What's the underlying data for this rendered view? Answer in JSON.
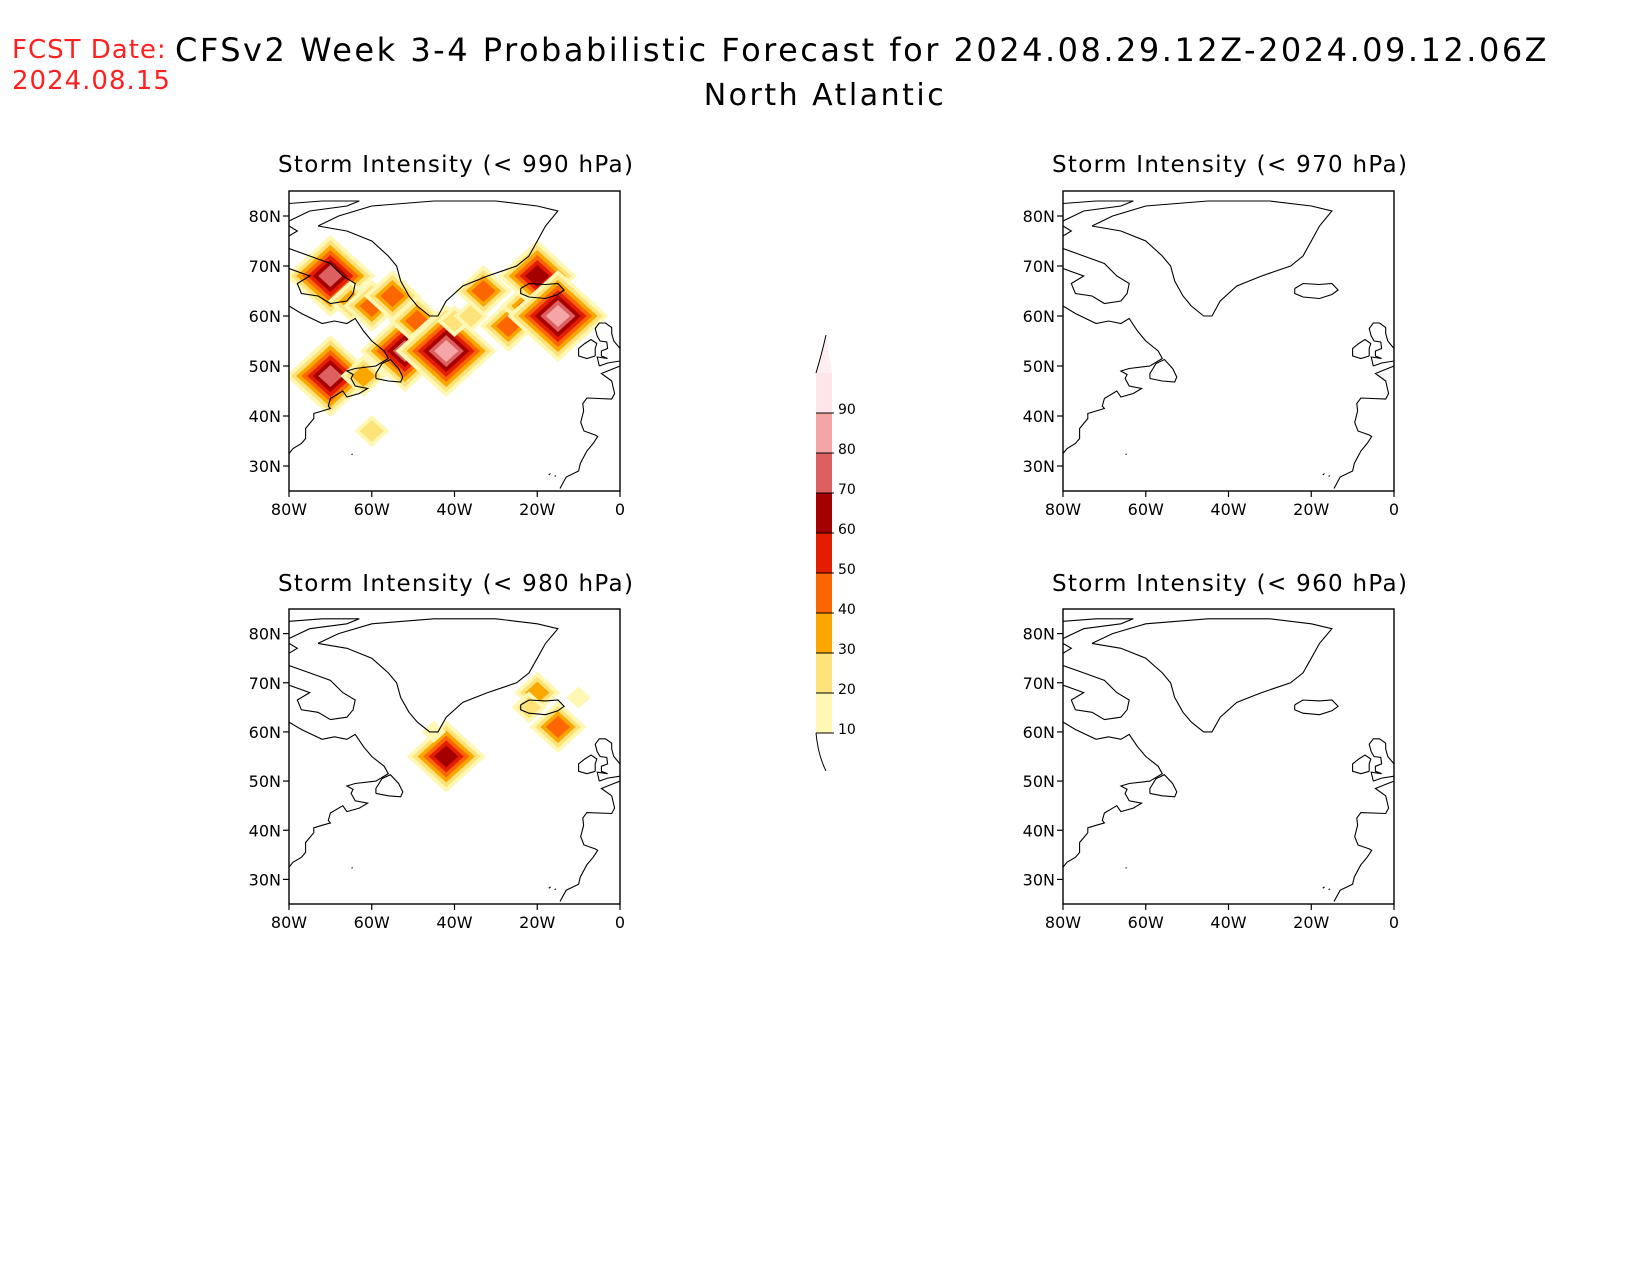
{
  "header": {
    "fcst_label": "FCST Date:",
    "fcst_date": "2024.08.15",
    "title": "CFSv2  Week  3-4  Probabilistic  Forecast  for  2024.08.29.12Z-2024.09.12.06Z",
    "region": "North  Atlantic"
  },
  "axes": {
    "lon_ticks": [
      "80W",
      "60W",
      "40W",
      "20W",
      "0"
    ],
    "lat_ticks": [
      "80N",
      "70N",
      "60N",
      "50N",
      "40N",
      "30N"
    ]
  },
  "panels": [
    {
      "id": "p990",
      "title": "Storm  Intensity  (< 990  hPa)"
    },
    {
      "id": "p970",
      "title": "Storm  Intensity  (< 970  hPa)"
    },
    {
      "id": "p980",
      "title": "Storm  Intensity  (< 980  hPa)"
    },
    {
      "id": "p960",
      "title": "Storm  Intensity  (< 960  hPa)"
    }
  ],
  "colorbar": {
    "levels": [
      10,
      20,
      30,
      40,
      50,
      60,
      70,
      80,
      90
    ],
    "labels": [
      "10",
      "20",
      "30",
      "40",
      "50",
      "60",
      "70",
      "80",
      "90"
    ],
    "colors": [
      "#fff8b4",
      "#fde37a",
      "#fca600",
      "#fb6600",
      "#e41c00",
      "#a50000",
      "#dd6060",
      "#f4a6a6",
      "#ffe6ea"
    ]
  },
  "chart_data": {
    "type": "heatmap",
    "variable": "Storm Intensity probability (%)",
    "lon_range": [
      -80,
      0
    ],
    "lat_range": [
      25,
      85
    ],
    "panels": [
      {
        "title": "Storm  Intensity  (< 990  hPa)",
        "features": [
          {
            "lon": -73,
            "lat": 67,
            "value": 20
          },
          {
            "lon": -70,
            "lat": 68,
            "value": 70
          },
          {
            "lon": -65,
            "lat": 63,
            "value": 30
          },
          {
            "lon": -60,
            "lat": 62,
            "value": 40
          },
          {
            "lon": -55,
            "lat": 64,
            "value": 40
          },
          {
            "lon": -52,
            "lat": 53,
            "value": 70
          },
          {
            "lon": -49,
            "lat": 59,
            "value": 40
          },
          {
            "lon": -44,
            "lat": 56,
            "value": 40
          },
          {
            "lon": -42,
            "lat": 53,
            "value": 80
          },
          {
            "lon": -40,
            "lat": 59,
            "value": 20
          },
          {
            "lon": -36,
            "lat": 60,
            "value": 20
          },
          {
            "lon": -33,
            "lat": 65,
            "value": 40
          },
          {
            "lon": -27,
            "lat": 58,
            "value": 40
          },
          {
            "lon": -22,
            "lat": 62,
            "value": 40
          },
          {
            "lon": -20,
            "lat": 68,
            "value": 60
          },
          {
            "lon": -15,
            "lat": 60,
            "value": 80
          },
          {
            "lon": -70,
            "lat": 48,
            "value": 70
          },
          {
            "lon": -62,
            "lat": 48,
            "value": 30
          },
          {
            "lon": -60,
            "lat": 37,
            "value": 20
          }
        ]
      },
      {
        "title": "Storm  Intensity  (< 970  hPa)",
        "features": []
      },
      {
        "title": "Storm  Intensity  (< 980  hPa)",
        "features": [
          {
            "lon": -42,
            "lat": 55,
            "value": 60
          },
          {
            "lon": -20,
            "lat": 68,
            "value": 30
          },
          {
            "lon": -22,
            "lat": 65,
            "value": 20
          },
          {
            "lon": -15,
            "lat": 61,
            "value": 40
          },
          {
            "lon": -45,
            "lat": 60,
            "value": 10
          },
          {
            "lon": -10,
            "lat": 67,
            "value": 10
          }
        ]
      },
      {
        "title": "Storm  Intensity  (< 960  hPa)",
        "features": []
      }
    ]
  }
}
